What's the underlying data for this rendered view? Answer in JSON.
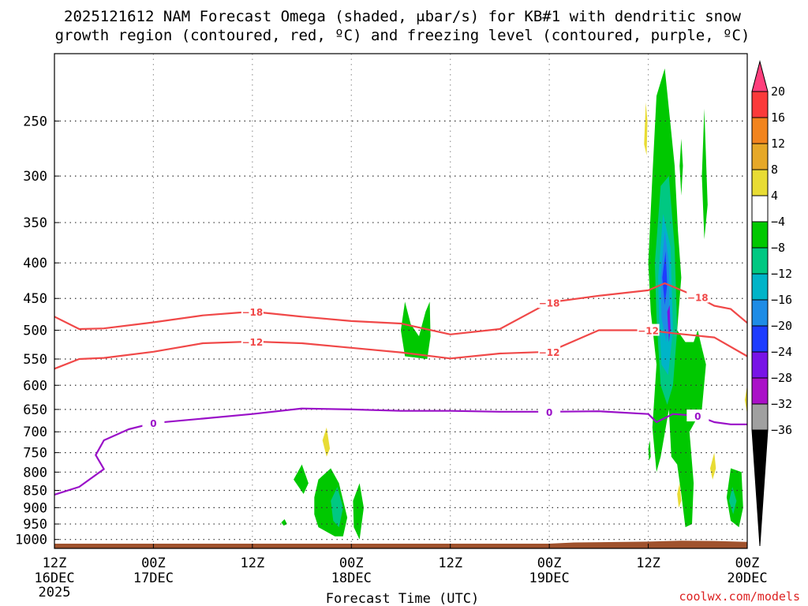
{
  "chart_data": {
    "type": "heatmap",
    "title_line1": "2025121612 NAM Forecast Omega (shaded, μbar/s) for KB#1 with dendritic snow",
    "title_line2": "growth region (contoured, red, ºC) and freezing level (contoured, purple, ºC)",
    "xlabel": "Forecast Time (UTC)",
    "credit": "coolwx.com/models",
    "x_range_hours": [
      0,
      84
    ],
    "x_ticks": [
      {
        "h": 0,
        "l1": "12Z",
        "l2": "16DEC",
        "l3": "2025"
      },
      {
        "h": 12,
        "l1": "00Z",
        "l2": "17DEC",
        "l3": ""
      },
      {
        "h": 24,
        "l1": "12Z",
        "l2": "",
        "l3": ""
      },
      {
        "h": 36,
        "l1": "00Z",
        "l2": "18DEC",
        "l3": ""
      },
      {
        "h": 48,
        "l1": "12Z",
        "l2": "",
        "l3": ""
      },
      {
        "h": 60,
        "l1": "00Z",
        "l2": "19DEC",
        "l3": ""
      },
      {
        "h": 72,
        "l1": "12Z",
        "l2": "",
        "l3": ""
      },
      {
        "h": 84,
        "l1": "00Z",
        "l2": "20DEC",
        "l3": ""
      }
    ],
    "y_axis": "pressure_hPa_log",
    "y_range_hPa": [
      1030,
      200
    ],
    "y_ticks": [
      250,
      300,
      350,
      400,
      450,
      500,
      550,
      600,
      650,
      700,
      750,
      800,
      850,
      900,
      950,
      1000
    ],
    "colorbar": {
      "labels": [
        "20",
        "16",
        "12",
        "8",
        "4",
        "−4",
        "−8",
        "−12",
        "−16",
        "−20",
        "−24",
        "−28",
        "−32",
        "−36"
      ],
      "colors": [
        "#ff3e7c",
        "#fb3a3a",
        "#f2841e",
        "#e6a828",
        "#e8dc34",
        "#ffffff",
        "#00c800",
        "#00c882",
        "#00b4c8",
        "#1e8ce6",
        "#1e3cff",
        "#7814e6",
        "#aa10c8",
        "#a0a0a0"
      ]
    },
    "contours": [
      {
        "name": "-18",
        "color": "#f04848",
        "label": "−18",
        "points": [
          [
            0,
            478
          ],
          [
            3,
            498
          ],
          [
            6,
            497
          ],
          [
            12,
            487
          ],
          [
            18,
            476
          ],
          [
            24,
            470
          ],
          [
            30,
            478
          ],
          [
            36,
            485
          ],
          [
            42,
            489
          ],
          [
            48,
            507
          ],
          [
            54,
            498
          ],
          [
            60,
            456
          ],
          [
            66,
            446
          ],
          [
            72,
            438
          ],
          [
            74,
            428
          ],
          [
            78,
            448
          ],
          [
            80,
            461
          ],
          [
            82,
            466
          ],
          [
            84,
            488
          ]
        ]
      },
      {
        "name": "-12",
        "color": "#f04848",
        "label": "−12",
        "points": [
          [
            0,
            568
          ],
          [
            3,
            550
          ],
          [
            6,
            548
          ],
          [
            12,
            537
          ],
          [
            18,
            522
          ],
          [
            24,
            519
          ],
          [
            30,
            522
          ],
          [
            36,
            530
          ],
          [
            42,
            538
          ],
          [
            48,
            549
          ],
          [
            54,
            540
          ],
          [
            60,
            537
          ],
          [
            63,
            518
          ],
          [
            66,
            500
          ],
          [
            72,
            500
          ],
          [
            75,
            505
          ],
          [
            80,
            512
          ],
          [
            84,
            545
          ]
        ]
      },
      {
        "name": "0",
        "color": "#9a10c8",
        "label": "0",
        "points": [
          [
            0,
            862
          ],
          [
            3,
            840
          ],
          [
            6,
            792
          ],
          [
            5,
            756
          ],
          [
            6,
            720
          ],
          [
            9,
            694
          ],
          [
            12,
            680
          ],
          [
            18,
            670
          ],
          [
            24,
            660
          ],
          [
            30,
            648
          ],
          [
            36,
            650
          ],
          [
            42,
            653
          ],
          [
            48,
            653
          ],
          [
            54,
            655
          ],
          [
            60,
            655
          ],
          [
            66,
            654
          ],
          [
            72,
            660
          ],
          [
            73,
            678
          ],
          [
            75,
            660
          ],
          [
            78,
            664
          ],
          [
            80,
            678
          ],
          [
            82,
            683
          ],
          [
            84,
            683
          ]
        ]
      }
    ],
    "omega_regions": [
      {
        "value": -8,
        "pts": [
          [
            29.0,
            820
          ],
          [
            30.0,
            780
          ],
          [
            30.8,
            830
          ],
          [
            30.2,
            860
          ]
        ]
      },
      {
        "value": 4,
        "pts": [
          [
            32.5,
            720
          ],
          [
            33.0,
            690
          ],
          [
            33.4,
            740
          ],
          [
            33.0,
            760
          ]
        ]
      },
      {
        "value": -8,
        "pts": [
          [
            27.5,
            945
          ],
          [
            27.9,
            935
          ],
          [
            28.2,
            950
          ],
          [
            27.8,
            955
          ]
        ]
      },
      {
        "value": -8,
        "pts": [
          [
            31.5,
            870
          ],
          [
            32.0,
            820
          ],
          [
            33.5,
            790
          ],
          [
            34.5,
            830
          ],
          [
            35.5,
            930
          ],
          [
            35.0,
            990
          ],
          [
            34.0,
            990
          ],
          [
            32.0,
            960
          ],
          [
            31.5,
            920
          ]
        ]
      },
      {
        "value": -8,
        "pts": [
          [
            36.2,
            880
          ],
          [
            37.0,
            830
          ],
          [
            37.5,
            900
          ],
          [
            37.0,
            1000
          ],
          [
            36.3,
            960
          ]
        ]
      },
      {
        "value": -12,
        "pts": [
          [
            33.5,
            880
          ],
          [
            34.3,
            840
          ],
          [
            35.0,
            900
          ],
          [
            34.5,
            960
          ],
          [
            33.8,
            940
          ]
        ]
      },
      {
        "value": -8,
        "pts": [
          [
            42.0,
            500
          ],
          [
            42.5,
            455
          ],
          [
            43.2,
            490
          ],
          [
            44.2,
            510
          ],
          [
            45.0,
            470
          ],
          [
            45.5,
            455
          ],
          [
            45.6,
            510
          ],
          [
            45.2,
            550
          ],
          [
            42.5,
            545
          ]
        ]
      },
      {
        "value": 4,
        "pts": [
          [
            71.5,
            270
          ],
          [
            71.7,
            235
          ],
          [
            71.9,
            250
          ],
          [
            71.8,
            280
          ]
        ]
      },
      {
        "value": -8,
        "pts": [
          [
            72.0,
            400
          ],
          [
            72.5,
            300
          ],
          [
            73.0,
            230
          ],
          [
            74.0,
            210
          ],
          [
            74.5,
            240
          ],
          [
            75.2,
            290
          ],
          [
            75.6,
            360
          ],
          [
            76.0,
            420
          ],
          [
            75.5,
            500
          ],
          [
            76.5,
            520
          ],
          [
            77.5,
            520
          ],
          [
            78.0,
            500
          ],
          [
            78.5,
            530
          ],
          [
            79.0,
            560
          ],
          [
            78.5,
            650
          ],
          [
            77.0,
            700
          ],
          [
            77.5,
            830
          ],
          [
            77.3,
            950
          ],
          [
            76.5,
            960
          ],
          [
            76.0,
            860
          ],
          [
            75.5,
            780
          ],
          [
            74.8,
            760
          ],
          [
            74.5,
            650
          ],
          [
            73.5,
            760
          ],
          [
            73.0,
            800
          ],
          [
            72.5,
            690
          ],
          [
            73.0,
            560
          ],
          [
            72.3,
            470
          ]
        ]
      },
      {
        "value": -12,
        "pts": [
          [
            72.8,
            400
          ],
          [
            73.5,
            310
          ],
          [
            74.5,
            300
          ],
          [
            75.2,
            380
          ],
          [
            75.5,
            500
          ],
          [
            75.0,
            600
          ],
          [
            74.3,
            640
          ],
          [
            73.5,
            600
          ],
          [
            73.0,
            480
          ]
        ]
      },
      {
        "value": -16,
        "pts": [
          [
            73.2,
            420
          ],
          [
            73.8,
            340
          ],
          [
            74.7,
            380
          ],
          [
            75.0,
            500
          ],
          [
            74.4,
            580
          ],
          [
            73.6,
            560
          ],
          [
            73.3,
            480
          ]
        ]
      },
      {
        "value": -20,
        "pts": [
          [
            73.5,
            420
          ],
          [
            74.0,
            360
          ],
          [
            74.5,
            400
          ],
          [
            74.6,
            480
          ],
          [
            74.2,
            520
          ],
          [
            73.6,
            480
          ]
        ]
      },
      {
        "value": -24,
        "pts": [
          [
            73.7,
            420
          ],
          [
            74.1,
            385
          ],
          [
            74.3,
            430
          ],
          [
            74.0,
            460
          ]
        ]
      },
      {
        "value": -28,
        "pts": [
          [
            74.3,
            470
          ],
          [
            74.6,
            460
          ],
          [
            74.7,
            500
          ],
          [
            74.5,
            520
          ]
        ]
      },
      {
        "value": -8,
        "pts": [
          [
            75.8,
            290
          ],
          [
            76.0,
            265
          ],
          [
            76.2,
            290
          ],
          [
            76.0,
            320
          ]
        ]
      },
      {
        "value": -8,
        "pts": [
          [
            78.5,
            300
          ],
          [
            78.8,
            240
          ],
          [
            79.2,
            330
          ],
          [
            78.8,
            370
          ]
        ]
      },
      {
        "value": -8,
        "pts": [
          [
            72.0,
            740
          ],
          [
            72.2,
            720
          ],
          [
            72.3,
            760
          ],
          [
            72.1,
            770
          ]
        ]
      },
      {
        "value": 4,
        "pts": [
          [
            75.5,
            860
          ],
          [
            75.8,
            830
          ],
          [
            76.0,
            880
          ],
          [
            75.7,
            900
          ]
        ]
      },
      {
        "value": 4,
        "pts": [
          [
            79.5,
            790
          ],
          [
            80.0,
            750
          ],
          [
            80.2,
            790
          ],
          [
            79.8,
            820
          ]
        ]
      },
      {
        "value": -8,
        "pts": [
          [
            81.5,
            870
          ],
          [
            82.0,
            790
          ],
          [
            83.3,
            800
          ],
          [
            83.5,
            900
          ],
          [
            83.0,
            960
          ],
          [
            82.0,
            940
          ]
        ]
      },
      {
        "value": -12,
        "pts": [
          [
            81.8,
            880
          ],
          [
            82.2,
            840
          ],
          [
            82.7,
            880
          ],
          [
            82.3,
            920
          ]
        ]
      },
      {
        "value": 4,
        "pts": [
          [
            83.7,
            630
          ],
          [
            84.0,
            600
          ],
          [
            84.0,
            660
          ]
        ]
      }
    ],
    "terrain_pressure_hPa": [
      [
        0,
        1030
      ],
      [
        60,
        1030
      ],
      [
        63,
        1026
      ],
      [
        72,
        1023
      ],
      [
        76,
        1020
      ],
      [
        80,
        1021
      ],
      [
        84,
        1024
      ]
    ]
  }
}
